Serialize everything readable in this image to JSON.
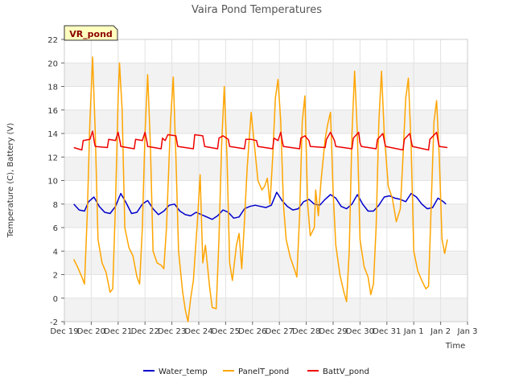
{
  "chart_data": {
    "type": "line",
    "title": "Vaira Pond Temperatures",
    "xlabel": "Time",
    "ylabel": "Temperature (C), Battery (V)",
    "badge": "VR_pond",
    "ylim": [
      -2,
      22
    ],
    "yticks": [
      -2,
      0,
      2,
      4,
      6,
      8,
      10,
      12,
      14,
      16,
      18,
      20,
      22
    ],
    "xlim": [
      0,
      15
    ],
    "xticks": [
      {
        "x": 0,
        "label": "Dec 19"
      },
      {
        "x": 1,
        "label": "Dec 20"
      },
      {
        "x": 2,
        "label": "Dec 21"
      },
      {
        "x": 3,
        "label": "Dec 22"
      },
      {
        "x": 4,
        "label": "Dec 23"
      },
      {
        "x": 5,
        "label": "Dec 24"
      },
      {
        "x": 6,
        "label": "Dec 25"
      },
      {
        "x": 7,
        "label": "Dec 26"
      },
      {
        "x": 8,
        "label": "Dec 27"
      },
      {
        "x": 9,
        "label": "Dec 28"
      },
      {
        "x": 10,
        "label": "Dec 29"
      },
      {
        "x": 11,
        "label": "Dec 30"
      },
      {
        "x": 12,
        "label": "Dec 31"
      },
      {
        "x": 13,
        "label": "Jan 1"
      },
      {
        "x": 14,
        "label": "Jan 2"
      },
      {
        "x": 15,
        "label": "Jan 3"
      }
    ],
    "grid": true,
    "legend_position": "bottom",
    "series": [
      {
        "name": "Water_temp",
        "color": "#0000cc",
        "points": [
          [
            0.35,
            8.0
          ],
          [
            0.55,
            7.5
          ],
          [
            0.75,
            7.4
          ],
          [
            0.9,
            8.2
          ],
          [
            1.1,
            8.6
          ],
          [
            1.3,
            7.8
          ],
          [
            1.5,
            7.3
          ],
          [
            1.7,
            7.2
          ],
          [
            1.9,
            7.8
          ],
          [
            2.1,
            8.9
          ],
          [
            2.3,
            8.1
          ],
          [
            2.5,
            7.2
          ],
          [
            2.7,
            7.3
          ],
          [
            2.9,
            8.0
          ],
          [
            3.1,
            8.3
          ],
          [
            3.3,
            7.6
          ],
          [
            3.5,
            7.1
          ],
          [
            3.7,
            7.4
          ],
          [
            3.9,
            7.9
          ],
          [
            4.1,
            8.0
          ],
          [
            4.3,
            7.4
          ],
          [
            4.5,
            7.1
          ],
          [
            4.7,
            7.0
          ],
          [
            4.9,
            7.3
          ],
          [
            5.1,
            7.1
          ],
          [
            5.3,
            6.9
          ],
          [
            5.5,
            6.7
          ],
          [
            5.7,
            7.0
          ],
          [
            5.9,
            7.5
          ],
          [
            6.1,
            7.3
          ],
          [
            6.3,
            6.8
          ],
          [
            6.5,
            6.9
          ],
          [
            6.7,
            7.6
          ],
          [
            6.9,
            7.8
          ],
          [
            7.1,
            7.9
          ],
          [
            7.3,
            7.8
          ],
          [
            7.5,
            7.7
          ],
          [
            7.7,
            7.9
          ],
          [
            7.9,
            9.0
          ],
          [
            8.1,
            8.3
          ],
          [
            8.3,
            7.8
          ],
          [
            8.5,
            7.5
          ],
          [
            8.7,
            7.6
          ],
          [
            8.9,
            8.2
          ],
          [
            9.1,
            8.4
          ],
          [
            9.3,
            8.0
          ],
          [
            9.5,
            7.9
          ],
          [
            9.7,
            8.4
          ],
          [
            9.9,
            8.8
          ],
          [
            10.1,
            8.5
          ],
          [
            10.3,
            7.8
          ],
          [
            10.5,
            7.6
          ],
          [
            10.7,
            8.0
          ],
          [
            10.9,
            8.8
          ],
          [
            11.1,
            8.0
          ],
          [
            11.3,
            7.4
          ],
          [
            11.5,
            7.4
          ],
          [
            11.7,
            7.9
          ],
          [
            11.9,
            8.6
          ],
          [
            12.1,
            8.7
          ],
          [
            12.3,
            8.5
          ],
          [
            12.5,
            8.4
          ],
          [
            12.7,
            8.2
          ],
          [
            12.9,
            8.9
          ],
          [
            13.1,
            8.6
          ],
          [
            13.3,
            8.0
          ],
          [
            13.5,
            7.6
          ],
          [
            13.7,
            7.7
          ],
          [
            13.9,
            8.5
          ],
          [
            14.1,
            8.2
          ],
          [
            14.2,
            8.0
          ]
        ]
      },
      {
        "name": "PanelT_pond",
        "color": "#ffa500",
        "points": [
          [
            0.35,
            3.3
          ],
          [
            0.5,
            2.6
          ],
          [
            0.65,
            1.8
          ],
          [
            0.75,
            1.2
          ],
          [
            0.85,
            7.0
          ],
          [
            0.95,
            15.0
          ],
          [
            1.05,
            20.5
          ],
          [
            1.15,
            14.0
          ],
          [
            1.25,
            5.0
          ],
          [
            1.4,
            3.0
          ],
          [
            1.55,
            2.2
          ],
          [
            1.7,
            0.5
          ],
          [
            1.8,
            0.8
          ],
          [
            1.9,
            8.0
          ],
          [
            2.0,
            17.0
          ],
          [
            2.05,
            20.0
          ],
          [
            2.15,
            16.0
          ],
          [
            2.25,
            6.0
          ],
          [
            2.4,
            4.3
          ],
          [
            2.55,
            3.6
          ],
          [
            2.7,
            1.8
          ],
          [
            2.8,
            1.2
          ],
          [
            2.9,
            6.0
          ],
          [
            3.0,
            14.0
          ],
          [
            3.1,
            19.0
          ],
          [
            3.2,
            13.0
          ],
          [
            3.3,
            4.0
          ],
          [
            3.45,
            3.0
          ],
          [
            3.6,
            2.8
          ],
          [
            3.7,
            2.5
          ],
          [
            3.8,
            6.0
          ],
          [
            3.95,
            15.0
          ],
          [
            4.05,
            18.8
          ],
          [
            4.15,
            12.0
          ],
          [
            4.25,
            4.0
          ],
          [
            4.4,
            0.5
          ],
          [
            4.5,
            -1.0
          ],
          [
            4.6,
            -2.0
          ],
          [
            4.7,
            0.0
          ],
          [
            4.8,
            1.5
          ],
          [
            4.95,
            6.5
          ],
          [
            5.05,
            10.5
          ],
          [
            5.15,
            3.0
          ],
          [
            5.25,
            4.5
          ],
          [
            5.4,
            1.0
          ],
          [
            5.5,
            -0.8
          ],
          [
            5.65,
            -0.9
          ],
          [
            5.75,
            5.0
          ],
          [
            5.85,
            13.0
          ],
          [
            5.95,
            18.0
          ],
          [
            6.05,
            12.0
          ],
          [
            6.15,
            3.0
          ],
          [
            6.25,
            1.5
          ],
          [
            6.4,
            4.5
          ],
          [
            6.5,
            5.5
          ],
          [
            6.6,
            2.5
          ],
          [
            6.7,
            6.5
          ],
          [
            6.8,
            11.0
          ],
          [
            6.95,
            15.8
          ],
          [
            7.05,
            13.5
          ],
          [
            7.2,
            10.0
          ],
          [
            7.35,
            9.2
          ],
          [
            7.45,
            9.5
          ],
          [
            7.55,
            10.2
          ],
          [
            7.65,
            8.0
          ],
          [
            7.75,
            12.0
          ],
          [
            7.85,
            17.0
          ],
          [
            7.95,
            18.6
          ],
          [
            8.05,
            15.0
          ],
          [
            8.15,
            8.0
          ],
          [
            8.25,
            5.0
          ],
          [
            8.4,
            3.5
          ],
          [
            8.55,
            2.5
          ],
          [
            8.65,
            1.8
          ],
          [
            8.75,
            7.0
          ],
          [
            8.85,
            15.0
          ],
          [
            8.95,
            17.2
          ],
          [
            9.05,
            8.0
          ],
          [
            9.15,
            5.3
          ],
          [
            9.3,
            6.0
          ],
          [
            9.35,
            9.2
          ],
          [
            9.45,
            7.0
          ],
          [
            9.55,
            10.0
          ],
          [
            9.7,
            13.5
          ],
          [
            9.8,
            14.8
          ],
          [
            9.9,
            15.8
          ],
          [
            10.0,
            9.0
          ],
          [
            10.1,
            4.5
          ],
          [
            10.25,
            2.0
          ],
          [
            10.4,
            0.5
          ],
          [
            10.5,
            -0.3
          ],
          [
            10.6,
            4.0
          ],
          [
            10.7,
            14.0
          ],
          [
            10.8,
            19.3
          ],
          [
            10.9,
            14.0
          ],
          [
            11.0,
            5.0
          ],
          [
            11.15,
            2.7
          ],
          [
            11.3,
            1.8
          ],
          [
            11.4,
            0.3
          ],
          [
            11.5,
            1.2
          ],
          [
            11.6,
            6.0
          ],
          [
            11.7,
            15.0
          ],
          [
            11.8,
            19.3
          ],
          [
            11.9,
            14.0
          ],
          [
            12.05,
            9.5
          ],
          [
            12.2,
            8.5
          ],
          [
            12.35,
            6.5
          ],
          [
            12.5,
            7.6
          ],
          [
            12.6,
            12.0
          ],
          [
            12.7,
            17.0
          ],
          [
            12.8,
            18.7
          ],
          [
            12.9,
            13.0
          ],
          [
            13.0,
            4.0
          ],
          [
            13.15,
            2.3
          ],
          [
            13.3,
            1.5
          ],
          [
            13.45,
            0.8
          ],
          [
            13.55,
            1.0
          ],
          [
            13.65,
            8.0
          ],
          [
            13.75,
            15.0
          ],
          [
            13.85,
            16.8
          ],
          [
            13.95,
            12.0
          ],
          [
            14.05,
            5.0
          ],
          [
            14.15,
            3.8
          ],
          [
            14.25,
            5.0
          ]
        ]
      },
      {
        "name": "BattV_pond",
        "color": "#ee0000",
        "points": [
          [
            0.35,
            12.8
          ],
          [
            0.65,
            12.6
          ],
          [
            0.7,
            13.4
          ],
          [
            0.95,
            13.5
          ],
          [
            1.05,
            14.2
          ],
          [
            1.12,
            13.2
          ],
          [
            1.15,
            12.9
          ],
          [
            1.6,
            12.8
          ],
          [
            1.65,
            13.5
          ],
          [
            1.9,
            13.4
          ],
          [
            2.0,
            14.1
          ],
          [
            2.08,
            13.2
          ],
          [
            2.1,
            12.9
          ],
          [
            2.6,
            12.7
          ],
          [
            2.65,
            13.5
          ],
          [
            2.9,
            13.4
          ],
          [
            3.0,
            14.1
          ],
          [
            3.08,
            13.2
          ],
          [
            3.1,
            12.9
          ],
          [
            3.6,
            12.7
          ],
          [
            3.65,
            13.6
          ],
          [
            3.75,
            13.4
          ],
          [
            3.85,
            13.9
          ],
          [
            4.15,
            13.8
          ],
          [
            4.22,
            12.9
          ],
          [
            4.8,
            12.7
          ],
          [
            4.85,
            13.9
          ],
          [
            5.15,
            13.8
          ],
          [
            5.22,
            12.9
          ],
          [
            5.7,
            12.7
          ],
          [
            5.75,
            13.6
          ],
          [
            5.9,
            13.8
          ],
          [
            6.1,
            13.5
          ],
          [
            6.15,
            12.9
          ],
          [
            6.7,
            12.7
          ],
          [
            6.75,
            13.5
          ],
          [
            6.95,
            13.5
          ],
          [
            7.15,
            13.4
          ],
          [
            7.2,
            12.9
          ],
          [
            7.75,
            12.7
          ],
          [
            7.8,
            13.6
          ],
          [
            7.95,
            13.4
          ],
          [
            8.05,
            14.1
          ],
          [
            8.12,
            13.2
          ],
          [
            8.15,
            12.9
          ],
          [
            8.75,
            12.7
          ],
          [
            8.8,
            13.6
          ],
          [
            8.95,
            13.8
          ],
          [
            9.1,
            13.4
          ],
          [
            9.15,
            12.9
          ],
          [
            9.7,
            12.8
          ],
          [
            9.75,
            13.5
          ],
          [
            9.9,
            14.1
          ],
          [
            10.05,
            13.4
          ],
          [
            10.1,
            12.9
          ],
          [
            10.7,
            12.7
          ],
          [
            10.75,
            13.6
          ],
          [
            10.95,
            14.1
          ],
          [
            11.0,
            13.2
          ],
          [
            11.05,
            12.9
          ],
          [
            11.6,
            12.7
          ],
          [
            11.65,
            13.5
          ],
          [
            11.85,
            14.0
          ],
          [
            11.92,
            13.2
          ],
          [
            11.95,
            12.9
          ],
          [
            12.6,
            12.6
          ],
          [
            12.65,
            13.5
          ],
          [
            12.85,
            14.0
          ],
          [
            12.92,
            13.2
          ],
          [
            12.95,
            12.9
          ],
          [
            13.55,
            12.6
          ],
          [
            13.6,
            13.5
          ],
          [
            13.85,
            14.1
          ],
          [
            13.92,
            13.2
          ],
          [
            13.95,
            12.9
          ],
          [
            14.25,
            12.8
          ]
        ]
      }
    ]
  }
}
